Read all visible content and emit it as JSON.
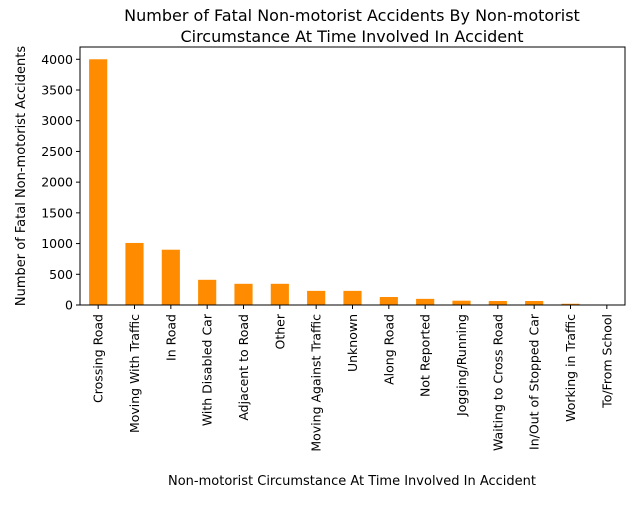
{
  "chart_data": {
    "type": "bar",
    "title": "Number of Fatal Non-motorist Accidents By Non-motorist Circumstance At Time Involved In Accident",
    "title_lines": [
      "Number of Fatal Non-motorist Accidents By Non-motorist",
      "Circumstance At Time Involved In Accident"
    ],
    "xlabel": "Non-motorist Circumstance At Time Involved In Accident",
    "ylabel": "Number of Fatal Non-motorist Accidents",
    "categories": [
      "Crossing Road",
      "Moving With Traffic",
      "In Road",
      "With Disabled Car",
      "Adjacent to Road",
      "Other",
      "Moving Against Traffic",
      "Unknown",
      "Along Road",
      "Not Reported",
      "Jogging/Running",
      "Waiting to Cross Road",
      "In/Out of Stopped Car",
      "Working in Traffic",
      "To/From School"
    ],
    "values": [
      4000,
      1010,
      900,
      410,
      345,
      345,
      230,
      230,
      130,
      100,
      70,
      65,
      65,
      20,
      5
    ],
    "ylim": [
      0,
      4200
    ],
    "yticks": [
      0,
      500,
      1000,
      1500,
      2000,
      2500,
      3000,
      3500,
      4000
    ],
    "bar_color": "#ff8c00",
    "grid": false,
    "legend": "none"
  }
}
